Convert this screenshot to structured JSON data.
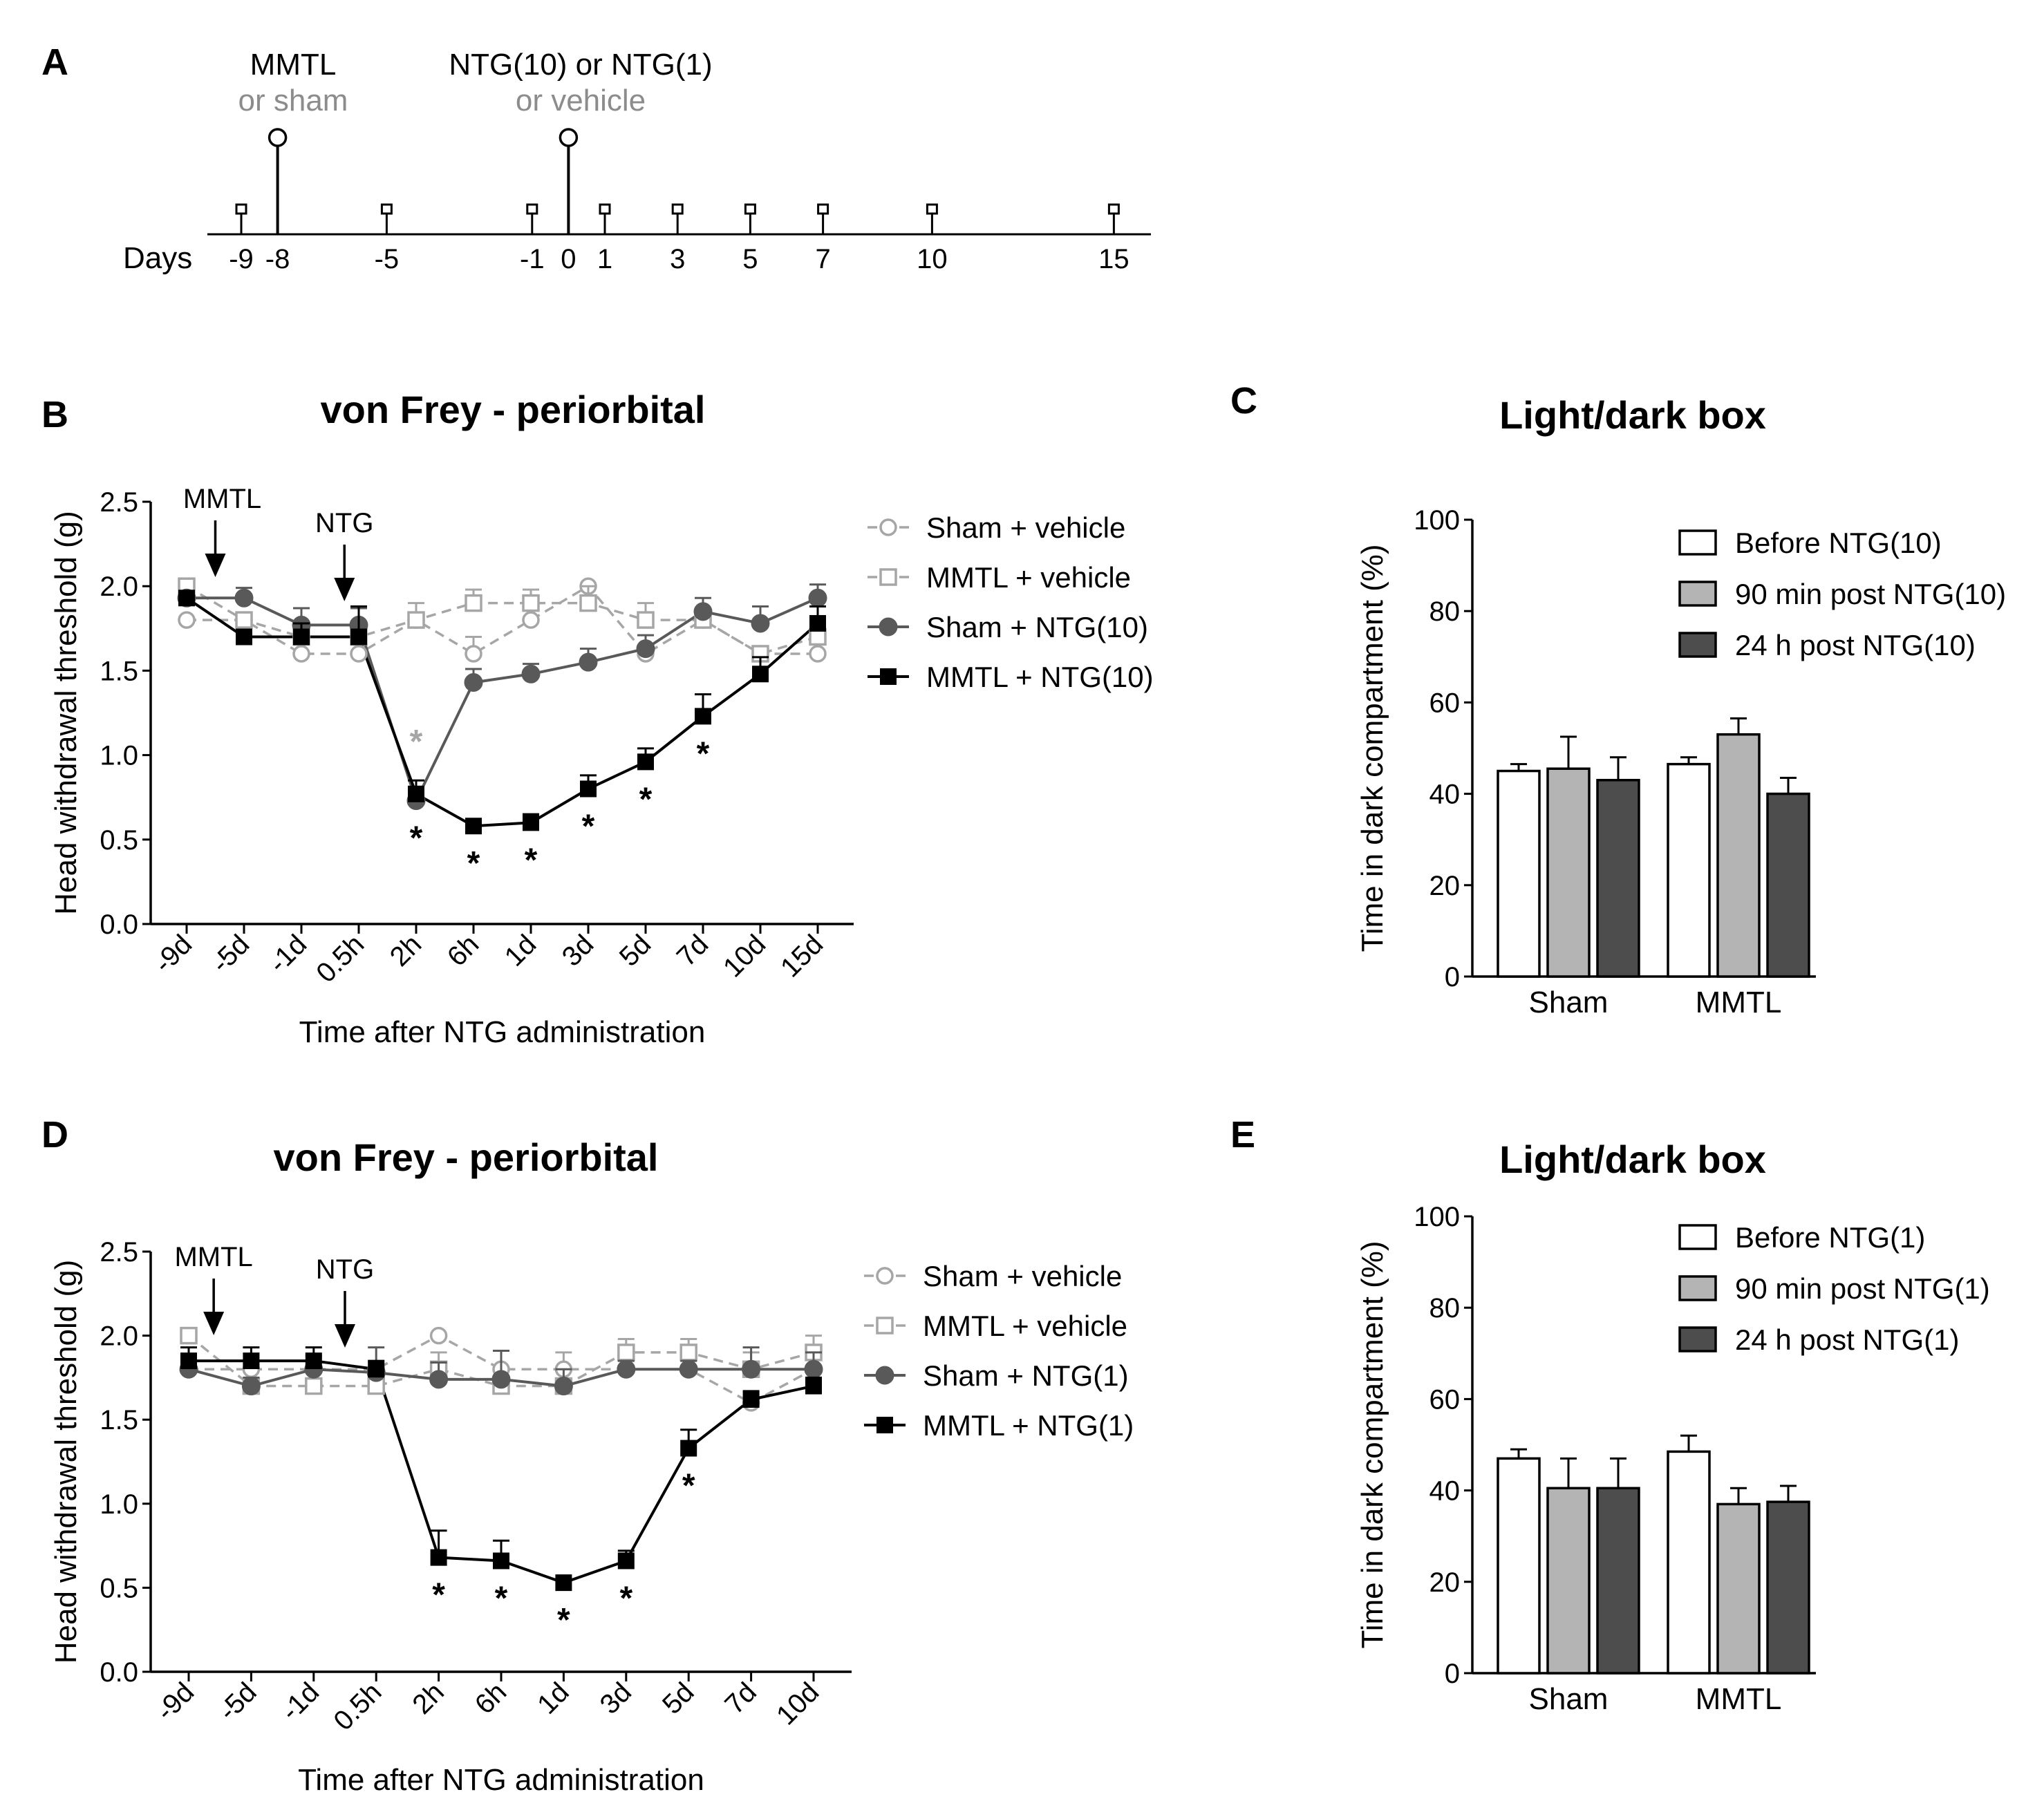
{
  "colors": {
    "sham_vehicle": "#a6a6a6",
    "mmtl_vehicle": "#a6a6a6",
    "sham_ntg": "#595959",
    "mmtl_ntg": "#000000",
    "bar_before": "#ffffff",
    "bar_90min": "#b4b4b4",
    "bar_24h": "#4d4d4d",
    "sig_gray": "#a6a6a6",
    "sig_black": "#000000"
  },
  "panel_labels": {
    "a": "A",
    "b": "B",
    "c": "C",
    "d": "D",
    "e": "E"
  },
  "timeline": {
    "event1_line1": "MMTL",
    "event1_line2": "or sham",
    "event2_line1": "NTG(10) or NTG(1)",
    "event2_line2": "or vehicle",
    "days_label": "Days",
    "days": [
      {
        "value": -9,
        "label": "-9"
      },
      {
        "value": -8,
        "label": "-8"
      },
      {
        "value": -5,
        "label": "-5"
      },
      {
        "value": -1,
        "label": "-1"
      },
      {
        "value": 0,
        "label": "0"
      },
      {
        "value": 1,
        "label": "1"
      },
      {
        "value": 3,
        "label": "3"
      },
      {
        "value": 5,
        "label": "5"
      },
      {
        "value": 7,
        "label": "7"
      },
      {
        "value": 10,
        "label": "10"
      },
      {
        "value": 15,
        "label": "15"
      }
    ],
    "event_days": [
      -8,
      0
    ],
    "test_days": [
      -9,
      -5,
      -1,
      1,
      3,
      5,
      7,
      10,
      15
    ]
  },
  "chart_data": [
    {
      "id": "B",
      "type": "line",
      "title": "von Frey - periorbital",
      "xlabel": "Time after NTG administration",
      "ylabel": "Head withdrawal threshold (g)",
      "ylim": [
        0,
        2.5
      ],
      "yticks": [
        "0.0",
        "0.5",
        "1.0",
        "1.5",
        "2.0",
        "2.5"
      ],
      "categories": [
        "-9d",
        "-5d",
        "-1d",
        "0.5h",
        "2h",
        "6h",
        "1d",
        "3d",
        "5d",
        "7d",
        "10d",
        "15d"
      ],
      "annotations": [
        {
          "text": "MMTL",
          "category_index": 0.5
        },
        {
          "text": "NTG",
          "category_index": 2.75
        }
      ],
      "series": [
        {
          "name": "Sham + vehicle",
          "key": "sham_vehicle",
          "values": [
            1.8,
            1.8,
            1.6,
            1.6,
            1.8,
            1.6,
            1.8,
            2.0,
            1.6,
            1.8,
            1.6,
            1.6
          ],
          "errors": [
            0,
            0,
            0,
            0,
            0,
            0.1,
            0,
            0,
            0,
            0,
            0,
            0
          ]
        },
        {
          "name": "MMTL + vehicle",
          "key": "mmtl_vehicle",
          "values": [
            2.0,
            1.8,
            1.7,
            1.7,
            1.8,
            1.9,
            1.9,
            1.9,
            1.8,
            1.8,
            1.6,
            1.7
          ],
          "errors": [
            0,
            0,
            0,
            0,
            0.1,
            0.08,
            0.08,
            0.1,
            0.1,
            0,
            0,
            0
          ]
        },
        {
          "name": "Sham + NTG(10)",
          "key": "sham_ntg",
          "values": [
            1.93,
            1.93,
            1.77,
            1.77,
            0.73,
            1.43,
            1.48,
            1.55,
            1.63,
            1.85,
            1.78,
            1.93
          ],
          "errors": [
            0.04,
            0.06,
            0.1,
            0.1,
            0.06,
            0.08,
            0.06,
            0.08,
            0.08,
            0.08,
            0.1,
            0.08
          ]
        },
        {
          "name": "MMTL + NTG(10)",
          "key": "mmtl_ntg",
          "values": [
            1.93,
            1.7,
            1.7,
            1.7,
            0.77,
            0.58,
            0.6,
            0.8,
            0.96,
            1.23,
            1.48,
            1.78
          ],
          "errors": [
            0.04,
            0.04,
            0.08,
            0.18,
            0.08,
            0.03,
            0.05,
            0.08,
            0.08,
            0.13,
            0.1,
            0.1
          ]
        }
      ],
      "significance": [
        {
          "key": "sham_ntg",
          "category_index": 4,
          "value": 0.73,
          "text": "*"
        },
        {
          "key": "mmtl_ntg",
          "category_index": 4,
          "value": 0.77,
          "text": "*",
          "above": true,
          "color_key": "sig_gray"
        },
        {
          "key": "mmtl_ntg",
          "category_index": 5,
          "value": 0.58,
          "text": "*"
        },
        {
          "key": "mmtl_ntg",
          "category_index": 6,
          "value": 0.6,
          "text": "*"
        },
        {
          "key": "mmtl_ntg",
          "category_index": 7,
          "value": 0.8,
          "text": "*"
        },
        {
          "key": "mmtl_ntg",
          "category_index": 8,
          "value": 0.96,
          "text": "*"
        },
        {
          "key": "mmtl_ntg",
          "category_index": 9,
          "value": 1.23,
          "text": "*"
        }
      ]
    },
    {
      "id": "C",
      "type": "bar",
      "title": "Light/dark box",
      "xlabel": "",
      "ylabel": "Time in dark compartment (%)",
      "ylim": [
        0,
        100
      ],
      "yticks": [
        "0",
        "20",
        "40",
        "60",
        "80",
        "100"
      ],
      "categories": [
        "Sham",
        "MMTL"
      ],
      "series": [
        {
          "name": "Before NTG(10)",
          "key": "bar_before",
          "values": [
            45,
            46.5
          ],
          "errors": [
            1.5,
            1.5
          ]
        },
        {
          "name": "90 min post NTG(10)",
          "key": "bar_90min",
          "values": [
            45.5,
            53
          ],
          "errors": [
            7,
            3.5
          ]
        },
        {
          "name": "24 h post NTG(10)",
          "key": "bar_24h",
          "values": [
            43,
            40
          ],
          "errors": [
            5,
            3.5
          ]
        }
      ]
    },
    {
      "id": "D",
      "type": "line",
      "title": "von Frey - periorbital",
      "xlabel": "Time after NTG administration",
      "ylabel": "Head withdrawal threshold (g)",
      "ylim": [
        0,
        2.5
      ],
      "yticks": [
        "0.0",
        "0.5",
        "1.0",
        "1.5",
        "2.0",
        "2.5"
      ],
      "categories": [
        "-9d",
        "-5d",
        "-1d",
        "0.5h",
        "2h",
        "6h",
        "1d",
        "3d",
        "5d",
        "7d",
        "10d"
      ],
      "annotations": [
        {
          "text": "MMTL",
          "category_index": 0.4
        },
        {
          "text": "NTG",
          "category_index": 2.5
        }
      ],
      "series": [
        {
          "name": "Sham + vehicle",
          "key": "sham_vehicle",
          "values": [
            1.8,
            1.8,
            1.8,
            1.8,
            2.0,
            1.8,
            1.8,
            1.8,
            1.8,
            1.6,
            1.8
          ],
          "errors": [
            0,
            0,
            0,
            0,
            0,
            0,
            0.1,
            0,
            0,
            0,
            0.1
          ]
        },
        {
          "name": "MMTL + vehicle",
          "key": "mmtl_vehicle",
          "values": [
            2.0,
            1.7,
            1.7,
            1.7,
            1.8,
            1.7,
            1.7,
            1.9,
            1.9,
            1.8,
            1.9
          ],
          "errors": [
            0,
            0,
            0,
            0,
            0.1,
            0,
            0,
            0.08,
            0.08,
            0.1,
            0.1
          ]
        },
        {
          "name": "Sham + NTG(1)",
          "key": "sham_ntg",
          "values": [
            1.8,
            1.7,
            1.8,
            1.78,
            1.74,
            1.74,
            1.7,
            1.8,
            1.8,
            1.8,
            1.8
          ],
          "errors": [
            0.04,
            0.05,
            0.08,
            0.15,
            0.1,
            0.17,
            0.1,
            0.05,
            0.05,
            0.13,
            0.1
          ]
        },
        {
          "name": "MMTL + NTG(1)",
          "key": "mmtl_ntg",
          "values": [
            1.85,
            1.85,
            1.85,
            1.8,
            0.68,
            0.66,
            0.53,
            0.66,
            1.33,
            1.62,
            1.7
          ],
          "errors": [
            0.08,
            0.08,
            0.08,
            0.05,
            0.16,
            0.12,
            0.02,
            0.06,
            0.11,
            0.05,
            0.05
          ]
        }
      ],
      "significance": [
        {
          "key": "mmtl_ntg",
          "category_index": 4,
          "value": 0.68,
          "text": "*"
        },
        {
          "key": "mmtl_ntg",
          "category_index": 5,
          "value": 0.66,
          "text": "*"
        },
        {
          "key": "mmtl_ntg",
          "category_index": 6,
          "value": 0.53,
          "text": "*"
        },
        {
          "key": "mmtl_ntg",
          "category_index": 7,
          "value": 0.66,
          "text": "*"
        },
        {
          "key": "mmtl_ntg",
          "category_index": 8,
          "value": 1.33,
          "text": "*"
        }
      ]
    },
    {
      "id": "E",
      "type": "bar",
      "title": "Light/dark box",
      "xlabel": "",
      "ylabel": "Time in dark compartment (%)",
      "ylim": [
        0,
        100
      ],
      "yticks": [
        "0",
        "20",
        "40",
        "60",
        "80",
        "100"
      ],
      "categories": [
        "Sham",
        "MMTL"
      ],
      "series": [
        {
          "name": "Before NTG(1)",
          "key": "bar_before",
          "values": [
            47,
            48.5
          ],
          "errors": [
            2,
            3.5
          ]
        },
        {
          "name": "90 min post NTG(1)",
          "key": "bar_90min",
          "values": [
            40.5,
            37
          ],
          "errors": [
            6.5,
            3.5
          ]
        },
        {
          "name": "24 h post NTG(1)",
          "key": "bar_24h",
          "values": [
            40.5,
            37.5
          ],
          "errors": [
            6.5,
            3.5
          ]
        }
      ]
    }
  ]
}
